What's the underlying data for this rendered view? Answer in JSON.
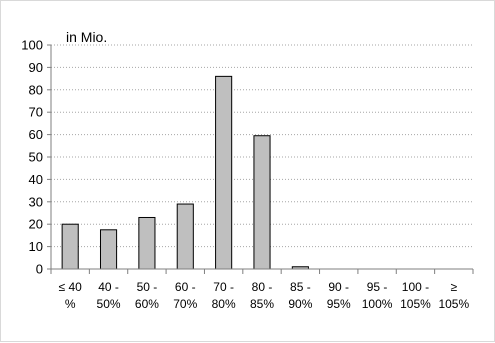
{
  "chart_data": {
    "type": "bar",
    "unit_label": "in Mio.",
    "categories": [
      [
        "≤ 40",
        "%"
      ],
      [
        "40 -",
        "50%"
      ],
      [
        "50 -",
        "60%"
      ],
      [
        "60 -",
        "70%"
      ],
      [
        "70 -",
        "80%"
      ],
      [
        "80 -",
        "85%"
      ],
      [
        "85 -",
        "90%"
      ],
      [
        "90 -",
        "95%"
      ],
      [
        "95 -",
        "100%"
      ],
      [
        "100 -",
        "105%"
      ],
      [
        "≥",
        "105%"
      ]
    ],
    "values": [
      20,
      17.5,
      23,
      29,
      86,
      59.5,
      1,
      0,
      0,
      0,
      0
    ],
    "ylim": [
      0,
      100
    ],
    "yticks": [
      0,
      10,
      20,
      30,
      40,
      50,
      60,
      70,
      80,
      90,
      100
    ],
    "grid": true,
    "colors": {
      "bar_fill": "#bfbfbf",
      "bar_stroke": "#000000",
      "grid": "#a6a6a6",
      "axis": "#7f7f7f"
    }
  }
}
